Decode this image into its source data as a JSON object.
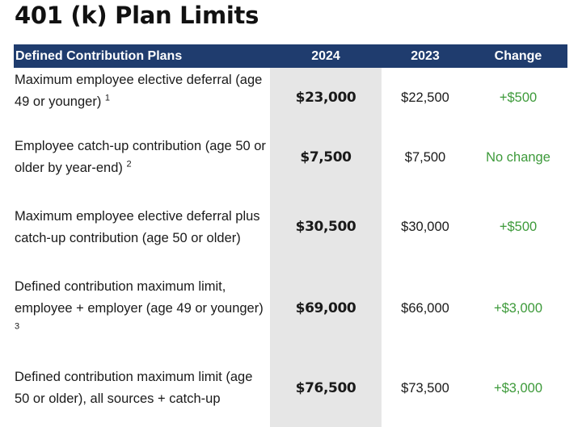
{
  "title": "401 (k) Plan Limits",
  "table": {
    "headers": {
      "plan": "Defined Contribution Plans",
      "y2024": "2024",
      "y2023": "2023",
      "change": "Change"
    },
    "rows": [
      {
        "desc": "Maximum employee elective deferral (age 49 or younger)",
        "footnote": "1",
        "y2024": "$23,000",
        "y2023": "$22,500",
        "change": "+$500"
      },
      {
        "desc": "Employee catch-up contribution (age 50 or older by year-end)",
        "footnote": "2",
        "y2024": "$7,500",
        "y2023": "$7,500",
        "change": "No change"
      },
      {
        "desc": "Maximum employee elective deferral plus catch-up contribution (age 50 or older)",
        "footnote": "",
        "y2024": "$30,500",
        "y2023": "$30,000",
        "change": "+$500"
      },
      {
        "desc": "Defined contribution maximum limit, employee + employer (age 49 or younger)",
        "footnote": "3",
        "y2024": "$69,000",
        "y2023": "$66,000",
        "change": "+$3,000"
      },
      {
        "desc": "Defined contribution maximum limit (age 50 or older), all sources + catch-up",
        "footnote": "",
        "y2024": "$76,500",
        "y2023": "$73,500",
        "change": "+$3,000"
      }
    ]
  }
}
